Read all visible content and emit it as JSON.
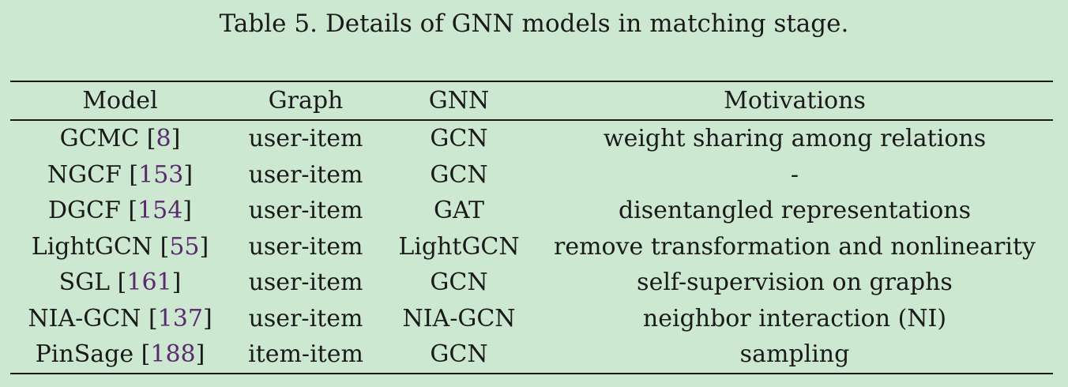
{
  "caption": {
    "label": "Table 5.",
    "text": "Details of GNN models in matching stage."
  },
  "table": {
    "headers": [
      "Model",
      "Graph",
      "GNN",
      "Motivations"
    ],
    "rows": [
      {
        "model": "GCMC",
        "ref": "8",
        "graph": "user-item",
        "gnn": "GCN",
        "motivation": "weight sharing among relations"
      },
      {
        "model": "NGCF",
        "ref": "153",
        "graph": "user-item",
        "gnn": "GCN",
        "motivation": "-"
      },
      {
        "model": "DGCF",
        "ref": "154",
        "graph": "user-item",
        "gnn": "GAT",
        "motivation": "disentangled representations"
      },
      {
        "model": "LightGCN",
        "ref": "55",
        "graph": "user-item",
        "gnn": "LightGCN",
        "motivation": "remove transformation and nonlinearity"
      },
      {
        "model": "SGL",
        "ref": "161",
        "graph": "user-item",
        "gnn": "GCN",
        "motivation": "self-supervision on graphs"
      },
      {
        "model": "NIA-GCN",
        "ref": "137",
        "graph": "user-item",
        "gnn": "NIA-GCN",
        "motivation": "neighbor interaction (NI)"
      },
      {
        "model": "PinSage",
        "ref": "188",
        "graph": "item-item",
        "gnn": "GCN",
        "motivation": "sampling"
      }
    ]
  },
  "colors": {
    "background": "#cce8d0",
    "text": "#1a1a1a",
    "citation": "#5b2a6e"
  }
}
